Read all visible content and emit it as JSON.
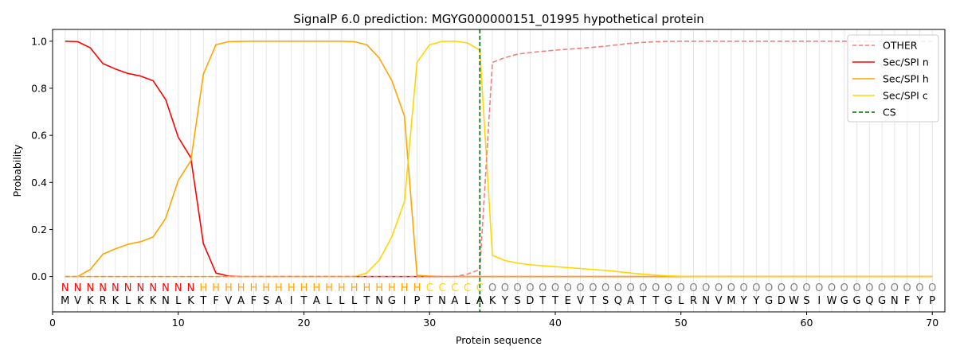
{
  "chart_data": {
    "type": "line",
    "title": "SignalP 6.0 prediction: MGYG000000151_01995 hypothetical protein",
    "xlabel": "Protein sequence",
    "ylabel": "Probability",
    "xlim": [
      0,
      71
    ],
    "ylim": [
      -0.15,
      1.05
    ],
    "xticks": [
      0,
      10,
      20,
      30,
      40,
      50,
      60,
      70
    ],
    "yticks": [
      0.0,
      0.2,
      0.4,
      0.6,
      0.8,
      1.0
    ],
    "ytick_labels": [
      "0.0",
      "0.2",
      "0.4",
      "0.6",
      "0.8",
      "1.0"
    ],
    "grid": "vertical lines at each residue",
    "legend_position": "top-right",
    "sequence": "MVKRKLKKNLKTFVAFSAITALLLTNGIPTNALAKYSDTTEVTSQATTGLRNVMYYGDWSIWGGQGNFYP",
    "labels": "NNNNNNNNNNNHHHHHHHHHHHHHHHHHHCCCCCOOOOOOOOOOOOOOOOOOOOOOOOOOOOOOOOOOOO",
    "label_colors": {
      "N": "#ff0000",
      "H": "#ffa500",
      "C": "#ffd700",
      "O": "#808080"
    },
    "x": [
      1,
      2,
      3,
      4,
      5,
      6,
      7,
      8,
      9,
      10,
      11,
      12,
      13,
      14,
      15,
      16,
      17,
      18,
      19,
      20,
      21,
      22,
      23,
      24,
      25,
      26,
      27,
      28,
      29,
      30,
      31,
      32,
      33,
      34,
      35,
      36,
      37,
      38,
      39,
      40,
      41,
      42,
      43,
      44,
      45,
      46,
      47,
      48,
      49,
      50,
      51,
      52,
      53,
      54,
      55,
      56,
      57,
      58,
      59,
      60,
      61,
      62,
      63,
      64,
      65,
      66,
      67,
      68,
      69,
      70
    ],
    "cs_position": 34,
    "series": [
      {
        "name": "OTHER",
        "color": "#f08080",
        "dash": "dashed",
        "values": [
          0,
          0,
          0,
          0,
          0,
          0,
          0,
          0,
          0,
          0,
          0,
          0,
          0,
          0,
          0,
          0,
          0,
          0,
          0,
          0,
          0,
          0,
          0,
          0,
          0,
          0,
          0,
          0,
          0,
          0,
          0,
          0,
          0.01,
          0.03,
          0.91,
          0.93,
          0.945,
          0.952,
          0.957,
          0.962,
          0.966,
          0.97,
          0.974,
          0.979,
          0.985,
          0.991,
          0.995,
          0.998,
          0.999,
          1,
          1,
          1,
          1,
          1,
          1,
          1,
          1,
          1,
          1,
          1,
          1,
          1,
          1,
          1,
          1,
          1,
          1,
          1,
          1,
          1
        ]
      },
      {
        "name": "Sec/SPI n",
        "color": "#ff0000",
        "dash": "solid",
        "values": [
          1,
          0.998,
          0.972,
          0.905,
          0.882,
          0.863,
          0.852,
          0.832,
          0.752,
          0.592,
          0.505,
          0.14,
          0.015,
          0.002,
          0,
          0,
          0,
          0,
          0,
          0,
          0,
          0,
          0,
          0,
          0,
          0,
          0,
          0,
          0,
          0,
          0,
          0,
          0,
          0,
          0,
          0,
          0,
          0,
          0,
          0,
          0,
          0,
          0,
          0,
          0,
          0,
          0,
          0,
          0,
          0,
          0,
          0,
          0,
          0,
          0,
          0,
          0,
          0,
          0,
          0,
          0,
          0,
          0,
          0,
          0,
          0,
          0,
          0,
          0,
          0
        ]
      },
      {
        "name": "Sec/SPI h",
        "color": "#ffa500",
        "dash": "solid",
        "values": [
          0,
          0,
          0.03,
          0.095,
          0.118,
          0.137,
          0.148,
          0.168,
          0.248,
          0.408,
          0.492,
          0.86,
          0.985,
          0.998,
          0.999,
          1,
          1,
          1,
          1,
          1,
          1,
          1,
          1,
          0.998,
          0.985,
          0.928,
          0.832,
          0.682,
          0.005,
          0.002,
          0,
          0,
          0,
          0,
          0,
          0,
          0,
          0,
          0,
          0,
          0,
          0,
          0,
          0,
          0,
          0,
          0,
          0,
          0,
          0,
          0,
          0,
          0,
          0,
          0,
          0,
          0,
          0,
          0,
          0,
          0,
          0,
          0,
          0,
          0,
          0,
          0,
          0,
          0,
          0
        ]
      },
      {
        "name": "Sec/SPI c",
        "color": "#ffd700",
        "dash": "solid",
        "values": [
          0,
          0,
          0,
          0,
          0,
          0,
          0,
          0,
          0,
          0,
          0,
          0,
          0,
          0,
          0,
          0,
          0,
          0,
          0,
          0,
          0,
          0,
          0,
          0,
          0.015,
          0.07,
          0.17,
          0.318,
          0.91,
          0.985,
          0.999,
          1,
          0.993,
          0.962,
          0.09,
          0.068,
          0.057,
          0.05,
          0.046,
          0.042,
          0.038,
          0.034,
          0.03,
          0.026,
          0.021,
          0.015,
          0.01,
          0.006,
          0.003,
          0.001,
          0,
          0,
          0,
          0,
          0,
          0,
          0,
          0,
          0,
          0,
          0,
          0,
          0,
          0,
          0,
          0,
          0,
          0,
          0,
          0
        ]
      }
    ],
    "legend": [
      {
        "label": "OTHER",
        "color": "#f08080",
        "dash": "dashed"
      },
      {
        "label": "Sec/SPI n",
        "color": "#ff0000",
        "dash": "solid"
      },
      {
        "label": "Sec/SPI h",
        "color": "#ffa500",
        "dash": "solid"
      },
      {
        "label": "Sec/SPI c",
        "color": "#ffd700",
        "dash": "solid"
      },
      {
        "label": "CS",
        "color": "#006400",
        "dash": "dashed"
      }
    ]
  }
}
